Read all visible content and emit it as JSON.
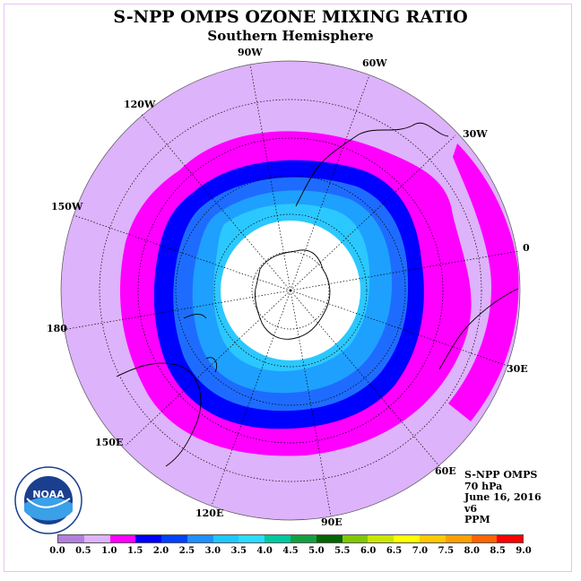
{
  "header": {
    "title": "S-NPP OMPS OZONE MIXING RATIO",
    "subtitle": "Southern Hemisphere"
  },
  "longitude_labels": {
    "lon_90w": "90W",
    "lon_60w": "60W",
    "lon_30w": "30W",
    "lon_0": "0",
    "lon_30e": "30E",
    "lon_60e": "60E",
    "lon_90e": "90E",
    "lon_120e": "120E",
    "lon_150e": "150E",
    "lon_180": "180",
    "lon_150w": "150W",
    "lon_120w": "120W"
  },
  "info": {
    "instrument": "S-NPP OMPS",
    "level": "70 hPa",
    "date": "June 16, 2016",
    "version": "v6",
    "units": "PPM"
  },
  "logo": {
    "name": "NOAA",
    "icon": "noaa-logo-icon"
  },
  "colorbar": {
    "ticks": [
      "0.0",
      "0.5",
      "1.0",
      "1.5",
      "2.0",
      "2.5",
      "3.0",
      "3.5",
      "4.0",
      "4.5",
      "5.0",
      "5.5",
      "6.0",
      "6.5",
      "7.0",
      "7.5",
      "8.0",
      "8.5",
      "9.0"
    ],
    "colors": [
      "#b27fdf",
      "#ddb3fb",
      "#ff00ff",
      "#0000ff",
      "#0040ff",
      "#1e90ff",
      "#1ec8ff",
      "#2bdcff",
      "#00c8a0",
      "#10a040",
      "#006400",
      "#80c800",
      "#c8e600",
      "#ffff00",
      "#ffc800",
      "#ffa000",
      "#ff6400",
      "#ff0000",
      "#8b5a3c"
    ]
  },
  "map_colors": {
    "outer": "#ddb3fb",
    "ring_magenta": "#ff00ff",
    "ring_blue": "#0000ff",
    "ring_medblue": "#1e6cff",
    "ring_lightblue": "#1ea0ff",
    "ring_cyan": "#2bc8ff",
    "core_hole": "#ffffff"
  }
}
